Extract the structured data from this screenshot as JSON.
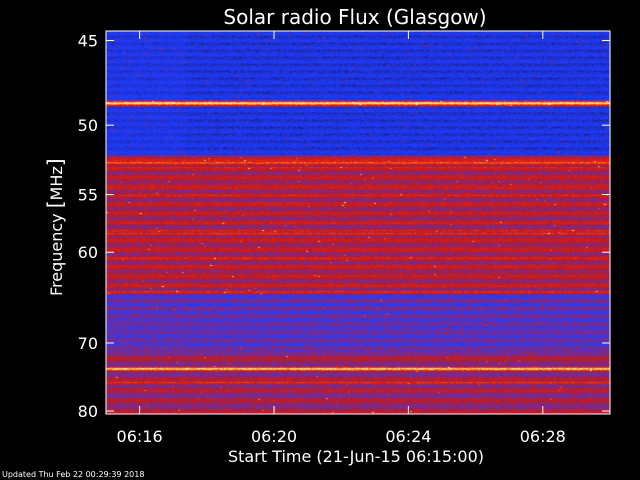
{
  "chart_data": {
    "type": "heatmap",
    "title": "Solar radio Flux (Glasgow)",
    "xlabel": "Start Time (21-Jun-15 06:15:00)",
    "ylabel_word": "Frequency ",
    "ylabel_unit": "MHz",
    "x_ticks": [
      "06:16",
      "06:20",
      "06:24",
      "06:28"
    ],
    "x_tick_minutes": [
      1,
      5,
      9,
      13
    ],
    "x_range_minutes": [
      0,
      15
    ],
    "y_ticks": [
      "45",
      "50",
      "55",
      "60",
      "70",
      "80"
    ],
    "y_tick_values": [
      45,
      50,
      55,
      60,
      70,
      80
    ],
    "y_range_mhz": [
      44.5,
      80.5
    ],
    "y_scale": "reciprocal",
    "colormap": [
      "#10106a",
      "#2030c8",
      "#1a3cff",
      "#6a2fa8",
      "#a81d3c",
      "#e01e0c",
      "#ff5010",
      "#ffd070",
      "#fff4d8"
    ],
    "bright_bands_mhz": [
      {
        "mhz": 48.6,
        "level": 1.0
      },
      {
        "mhz": 52.6,
        "level": 0.8
      },
      {
        "mhz": 54.5,
        "level": 0.65
      },
      {
        "mhz": 58.3,
        "level": 0.7
      },
      {
        "mhz": 64.0,
        "level": 0.7
      },
      {
        "mhz": 73.5,
        "level": 0.95
      },
      {
        "mhz": 75.5,
        "level": 0.7
      }
    ],
    "grid": false,
    "legend": "none"
  },
  "footer": {
    "updated": "Updated Thu Feb 22 00:29:39 2018"
  }
}
